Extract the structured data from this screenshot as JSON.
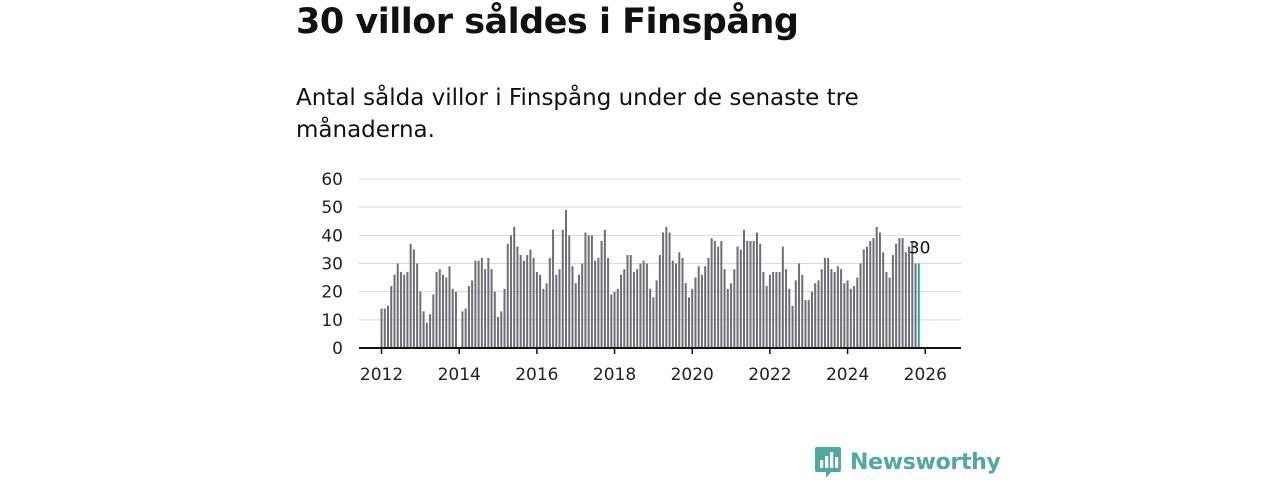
{
  "header": {
    "title": "30 villor såldes i Finspång",
    "subtitle": "Antal sålda villor i Finspång under de senaste tre månaderna."
  },
  "brand": {
    "name": "Newsworthy"
  },
  "colors": {
    "bar": "#6f6e77",
    "highlight": "#1aa8a0",
    "grid": "#d9d9d9",
    "axis": "#111111",
    "brand": "#4fa9a3"
  },
  "chart_data": {
    "type": "bar",
    "title": "30 villor såldes i Finspång",
    "subtitle": "Antal sålda villor i Finspång under de senaste tre månaderna.",
    "xlabel": "",
    "ylabel": "",
    "ylim": [
      0,
      60
    ],
    "yticks": [
      0,
      10,
      20,
      30,
      40,
      50,
      60
    ],
    "xlim": [
      2011.42,
      2026.92
    ],
    "xticks": [
      2012,
      2014,
      2016,
      2018,
      2020,
      2022,
      2024,
      2026
    ],
    "xtick_labels": [
      "2012",
      "2014",
      "2016",
      "2018",
      "2020",
      "2022",
      "2024",
      "2026"
    ],
    "grid": true,
    "start": 2012.0,
    "step": 0.08333,
    "values": [
      14,
      14,
      15,
      22,
      26,
      30,
      27,
      26,
      27,
      37,
      35,
      30,
      20,
      13,
      9,
      12,
      19,
      27,
      28,
      26,
      25,
      29,
      21,
      20,
      0,
      13,
      14,
      22,
      24,
      31,
      31,
      32,
      28,
      32,
      28,
      20,
      11,
      13,
      21,
      37,
      40,
      43,
      36,
      33,
      31,
      33,
      35,
      32,
      27,
      26,
      21,
      23,
      32,
      42,
      26,
      28,
      42,
      49,
      40,
      29,
      23,
      26,
      30,
      41,
      40,
      40,
      31,
      32,
      38,
      42,
      32,
      19,
      20,
      21,
      26,
      28,
      33,
      33,
      27,
      28,
      30,
      31,
      30,
      21,
      18,
      24,
      33,
      41,
      43,
      41,
      31,
      30,
      34,
      32,
      23,
      18,
      21,
      25,
      29,
      26,
      29,
      32,
      39,
      38,
      36,
      38,
      28,
      21,
      23,
      28,
      36,
      35,
      42,
      38,
      38,
      38,
      41,
      37,
      27,
      22,
      26,
      27,
      27,
      27,
      36,
      28,
      21,
      15,
      24,
      30,
      26,
      17,
      17,
      20,
      23,
      24,
      28,
      32,
      32,
      28,
      27,
      29,
      28,
      23,
      24,
      21,
      22,
      25,
      30,
      35,
      36,
      38,
      39,
      43,
      41,
      34,
      27,
      25,
      33,
      37,
      39,
      39,
      34,
      36,
      38,
      30,
      30
    ],
    "last_value": 30,
    "last_value_label": "30"
  }
}
